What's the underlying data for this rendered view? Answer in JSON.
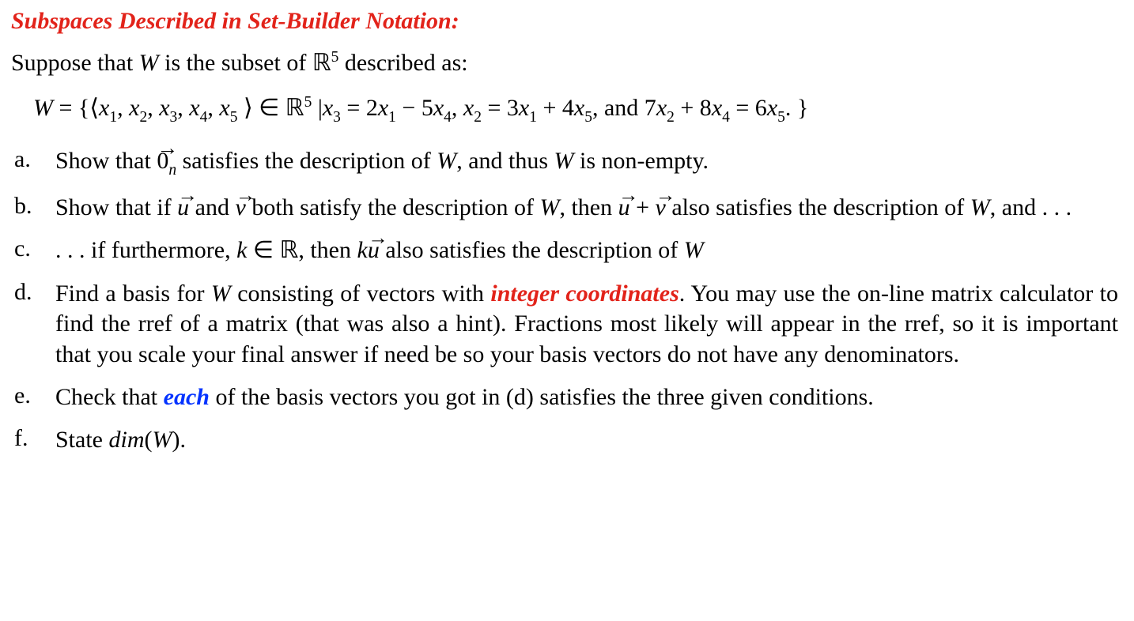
{
  "title": "Subspaces Described in Set-Builder Notation:",
  "intro_pre": "Suppose that ",
  "intro_W": "W",
  "intro_mid": " is the subset of ",
  "intro_R": "ℝ",
  "intro_exp": "5",
  "intro_post": " described as:",
  "eq": {
    "W": "W",
    "eqsym": " = ",
    "lbrace": "{",
    "langle": "⟨",
    "x1": "x",
    "s1": "1",
    "comma": ", ",
    "x2": "x",
    "s2": "2",
    "x3": "x",
    "s3": "3",
    "x4": "x",
    "s4": "4",
    "x5": "x",
    "s5": "5",
    "rangle": " ⟩",
    "in": " ∈ ",
    "R": "ℝ",
    "exp": "5",
    "bar": " |",
    "c1a": "x",
    "c1as": "3",
    "c1eq": " = 2",
    "c1b": "x",
    "c1bs": "1",
    "c1m": " − 5",
    "c1c": "x",
    "c1cs": "4",
    "sep1": ", ",
    "c2a": "x",
    "c2as": "2",
    "c2eq": " = 3",
    "c2b": "x",
    "c2bs": "1",
    "c2m": " + 4",
    "c2c": "x",
    "c2cs": "5",
    "sep2": ", and 7",
    "c3a": "x",
    "c3as": "2",
    "c3m": " + 8",
    "c3b": "x",
    "c3bs": "4",
    "c3eq": " = 6",
    "c3c": "x",
    "c3cs": "5",
    "end": ". ",
    "rbrace": "}"
  },
  "items": {
    "a": {
      "marker": "a.",
      "t1": "Show that ",
      "zero": "0",
      "zeron": "n",
      "t2": " satisfies the description of ",
      "W1": "W",
      "t3": ",  and thus ",
      "W2": "W",
      "t4": " is non-empty."
    },
    "b": {
      "marker": "b.",
      "t1": "Show that if ",
      "u1": "u",
      "t2": " and ",
      "v1": "v",
      "t3": " both satisfy the description of ",
      "W1": "W",
      "t4": ",  then ",
      "u2": "u",
      "plus": " + ",
      "v2": "v",
      "t5": " also satisfies the description of ",
      "W2": "W",
      "t6": ",  and . . ."
    },
    "c": {
      "marker": "c.",
      "t1": ". . . if furthermore, ",
      "k": "k",
      "in": " ∈ ",
      "R": "ℝ",
      "t2": ",  then ",
      "k2": "k",
      "u": "u",
      "t3": " also satisfies the description of ",
      "W": "W"
    },
    "d": {
      "marker": "d.",
      "t1": "Find a basis for ",
      "W": "W",
      "t2": " consisting of vectors with ",
      "red": "integer coordinates",
      "t3": ". You may use the on-line matrix calculator to find the rref of a matrix (that was also a hint). Fractions most likely will appear in the rref, so it is important that you scale your final answer if need be so your basis vectors do not have any denominators."
    },
    "e": {
      "marker": "e.",
      "t1": "Check that ",
      "blue": "each",
      "t2": " of the basis vectors you got in (d) satisfies the three given conditions."
    },
    "f": {
      "marker": "f.",
      "t1": "State ",
      "dim": "dim",
      "lp": "(",
      "W": "W",
      "rp": ")",
      "dot": "."
    }
  },
  "arrow": "→"
}
